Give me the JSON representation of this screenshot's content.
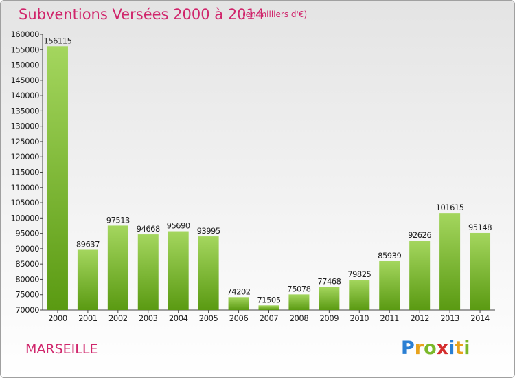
{
  "header": {
    "title": "Subventions Versées 2000 à 2014",
    "subtitle": "(en milliers d'€)"
  },
  "footer": {
    "city": "MARSEILLE",
    "logo_letters": [
      "P",
      "r",
      "o",
      "x",
      "i",
      "t",
      "i"
    ],
    "logo_colors": [
      "#2a7fd3",
      "#e8a21c",
      "#7ab829",
      "#d42d2d",
      "#2a7fd3",
      "#e8a21c",
      "#7ab829"
    ]
  },
  "colors": {
    "bar_top": "#a4d65e",
    "bar_bottom": "#5a9a12",
    "text": "#222222",
    "accent": "#d0256b"
  },
  "chart_data": {
    "type": "bar",
    "title": "Subventions Versées 2000 à 2014",
    "subtitle": "(en milliers d'€)",
    "categories": [
      "2000",
      "2001",
      "2002",
      "2003",
      "2004",
      "2005",
      "2006",
      "2007",
      "2008",
      "2009",
      "2010",
      "2011",
      "2012",
      "2013",
      "2014"
    ],
    "values": [
      156115,
      89637,
      97513,
      94668,
      95690,
      93995,
      74202,
      71505,
      75078,
      77468,
      79825,
      85939,
      92626,
      101615,
      95148
    ],
    "value_labels": [
      "156115",
      "89637",
      "97513",
      "94668",
      "95690",
      "93995",
      "74202",
      "71505",
      "75078",
      "77468",
      "79825",
      "85939",
      "92626",
      "101615",
      "95148"
    ],
    "ylim": [
      70000,
      160000
    ],
    "yticks": [
      70000,
      75000,
      80000,
      85000,
      90000,
      95000,
      100000,
      105000,
      110000,
      115000,
      120000,
      125000,
      130000,
      135000,
      140000,
      145000,
      150000,
      155000,
      160000
    ],
    "ytick_labels": [
      "70000",
      "75000",
      "80000",
      "85000",
      "90000",
      "95000",
      "100000",
      "105000",
      "110000",
      "115000",
      "120000",
      "125000",
      "130000",
      "135000",
      "140000",
      "145000",
      "150000",
      "155000",
      "160000"
    ],
    "xlabel": "",
    "ylabel": "",
    "grid": false,
    "legend": "none"
  }
}
